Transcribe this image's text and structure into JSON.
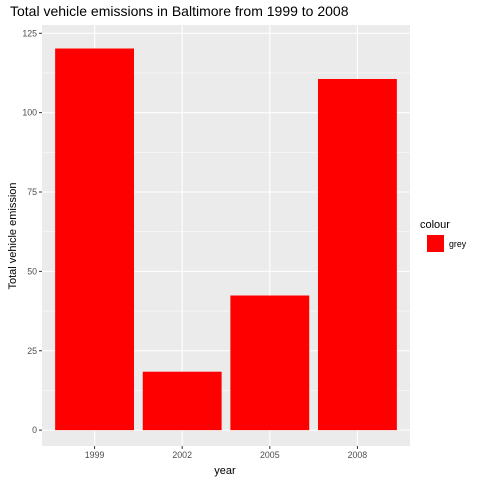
{
  "chart_data": {
    "type": "bar",
    "title": "Total vehicle emissions in Baltimore  from 1999 to 2008",
    "xlabel": "year",
    "ylabel": "Total vehicle emission",
    "categories": [
      "1999",
      "2002",
      "2005",
      "2008"
    ],
    "values": [
      120.2,
      18.4,
      42.4,
      110.6
    ],
    "ylim": [
      0,
      125
    ],
    "yticks": [
      0,
      25,
      50,
      75,
      100,
      125
    ],
    "bar_color": "#ff0000",
    "panel_background": "#ebebeb",
    "grid_color": "#ffffff",
    "grid": true,
    "legend": {
      "title": "colour",
      "placement": "right",
      "entries": [
        {
          "label": "grey",
          "color": "#ff0000"
        }
      ]
    }
  }
}
